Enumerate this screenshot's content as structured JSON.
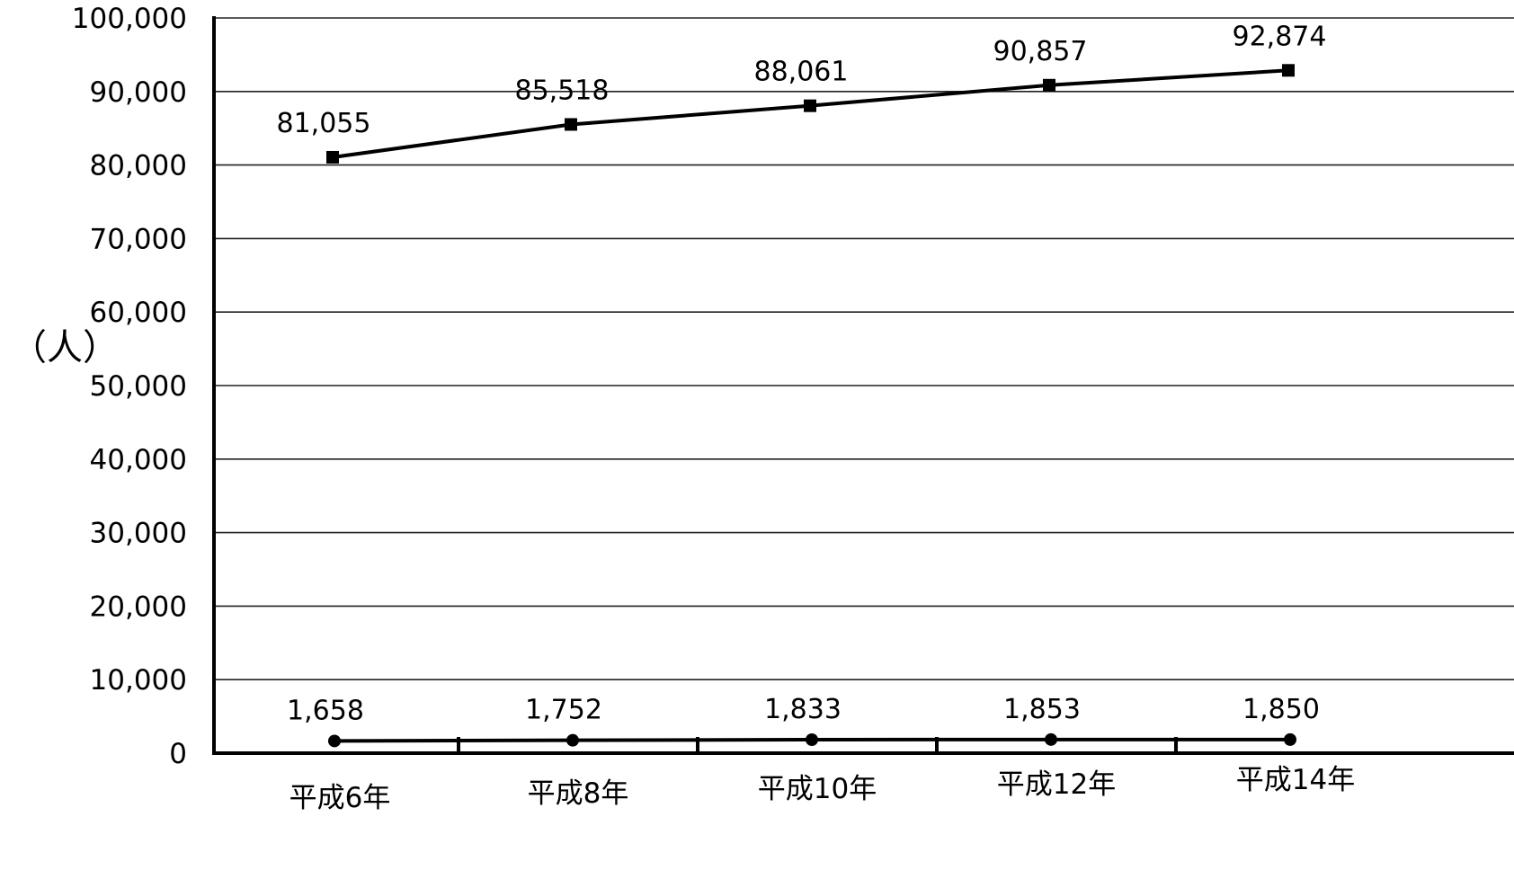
{
  "chart_data": {
    "type": "line",
    "categories": [
      "平成6年",
      "平成8年",
      "平成10年",
      "平成12年",
      "平成14年"
    ],
    "ylabel": "（人）",
    "ylim": [
      0,
      100000
    ],
    "yticks": [
      {
        "value": 0,
        "label": "0"
      },
      {
        "value": 10000,
        "label": "10,000"
      },
      {
        "value": 20000,
        "label": "20,000"
      },
      {
        "value": 30000,
        "label": "30,000"
      },
      {
        "value": 40000,
        "label": "40,000"
      },
      {
        "value": 50000,
        "label": "50,000"
      },
      {
        "value": 60000,
        "label": "60,000"
      },
      {
        "value": 70000,
        "label": "70,000"
      },
      {
        "value": 80000,
        "label": "80,000"
      },
      {
        "value": 90000,
        "label": "90,000"
      },
      {
        "value": 100000,
        "label": "100,000"
      }
    ],
    "grid": true,
    "legend": "none",
    "series": [
      {
        "marker": "square",
        "values": [
          81055,
          85518,
          88061,
          90857,
          92874
        ],
        "labels": [
          "81,055",
          "85,518",
          "88,061",
          "90,857",
          "92,874"
        ]
      },
      {
        "marker": "circle",
        "values": [
          1658,
          1752,
          1833,
          1853,
          1850
        ],
        "labels": [
          "1,658",
          "1,752",
          "1,833",
          "1,853",
          "1,850"
        ]
      }
    ],
    "colors": {
      "line": "#000000",
      "grid": "#222222",
      "background": "#ffffff"
    }
  }
}
